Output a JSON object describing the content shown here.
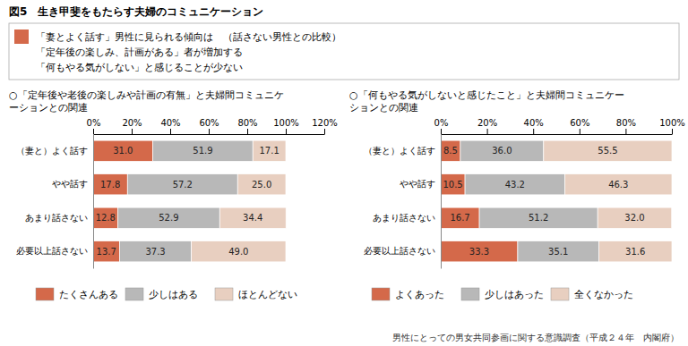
{
  "chart_data": [
    {
      "type": "bar",
      "orientation": "horizontal",
      "stacked": true,
      "data_labels": true,
      "grid": false,
      "legend": "bottom",
      "title": "図5　生き甲斐をもたらす夫婦のコミュニケーション",
      "subtitle": [
        "○「定年後や老後の楽しみや計画の有無」と夫婦間コミュニケ",
        "ーションとの関連"
      ],
      "annotations": [
        "「妻とよく話す」男性に見られる傾向は　（話さない男性との比較）",
        "「定年後の楽しみ、計画がある」者が増加する",
        "「何もやる気がしない」と感じることが少ない"
      ],
      "categories": [
        "（妻と）よく話す",
        "やや話す",
        "あまり話さない",
        "必要以上話さない"
      ],
      "series": [
        {
          "name": "たくさんある",
          "color": "#d4694a",
          "values": [
            31.0,
            17.8,
            12.8,
            13.7
          ],
          "value_labels": [
            "31.0",
            "17.8",
            "12.8",
            "13.7"
          ]
        },
        {
          "name": "少しはある",
          "color": "#b8b8b8",
          "values": [
            51.9,
            57.2,
            52.9,
            37.3
          ],
          "value_labels": [
            "51.9",
            "57.2",
            "52.9",
            "37.3"
          ]
        },
        {
          "name": "ほとんどない",
          "color": "#e8cfc0",
          "values": [
            17.1,
            25.0,
            34.4,
            49.0
          ],
          "value_labels": [
            "17.1",
            "25.0",
            "34.4",
            "49.0"
          ]
        }
      ],
      "xlim": [
        0,
        120
      ],
      "xticks": [
        {
          "value": 0,
          "label": "0%"
        },
        {
          "value": 20,
          "label": "20%"
        },
        {
          "value": 40,
          "label": "40%"
        },
        {
          "value": 60,
          "label": "60%"
        },
        {
          "value": 80,
          "label": "80%"
        },
        {
          "value": 100,
          "label": "100%"
        },
        {
          "value": 120,
          "label": "120%"
        }
      ]
    },
    {
      "type": "bar",
      "orientation": "horizontal",
      "stacked": true,
      "data_labels": true,
      "grid": false,
      "legend": "bottom",
      "subtitle": [
        "○「何もやる気がしないと感じたこと」と夫婦間コミュニケー",
        "ションとの関連"
      ],
      "annotations": [
        "男性にとっての男女共同参画に関する意識調査（平成２４年　内閣府）"
      ],
      "categories": [
        "（妻と）よく話す",
        "やや話す",
        "あまり話さない",
        "必要以上話さない"
      ],
      "series": [
        {
          "name": "よくあった",
          "color": "#d4694a",
          "values": [
            8.5,
            10.5,
            16.7,
            33.3
          ],
          "value_labels": [
            "8.5",
            "10.5",
            "16.7",
            "33.3"
          ]
        },
        {
          "name": "少しはあった",
          "color": "#b8b8b8",
          "values": [
            36.0,
            43.2,
            51.2,
            35.1
          ],
          "value_labels": [
            "36.0",
            "43.2",
            "51.2",
            "35.1"
          ]
        },
        {
          "name": "全くなかった",
          "color": "#e8cfc0",
          "values": [
            55.5,
            46.3,
            32.0,
            31.6
          ],
          "value_labels": [
            "55.5",
            "46.3",
            "32.0",
            "31.6"
          ]
        }
      ],
      "xlim": [
        0,
        100
      ],
      "xticks": [
        {
          "value": 0,
          "label": "0%"
        },
        {
          "value": 20,
          "label": "20%"
        },
        {
          "value": 40,
          "label": "40%"
        },
        {
          "value": 60,
          "label": "60%"
        },
        {
          "value": 80,
          "label": "80%"
        },
        {
          "value": 100,
          "label": "100%"
        }
      ]
    }
  ]
}
